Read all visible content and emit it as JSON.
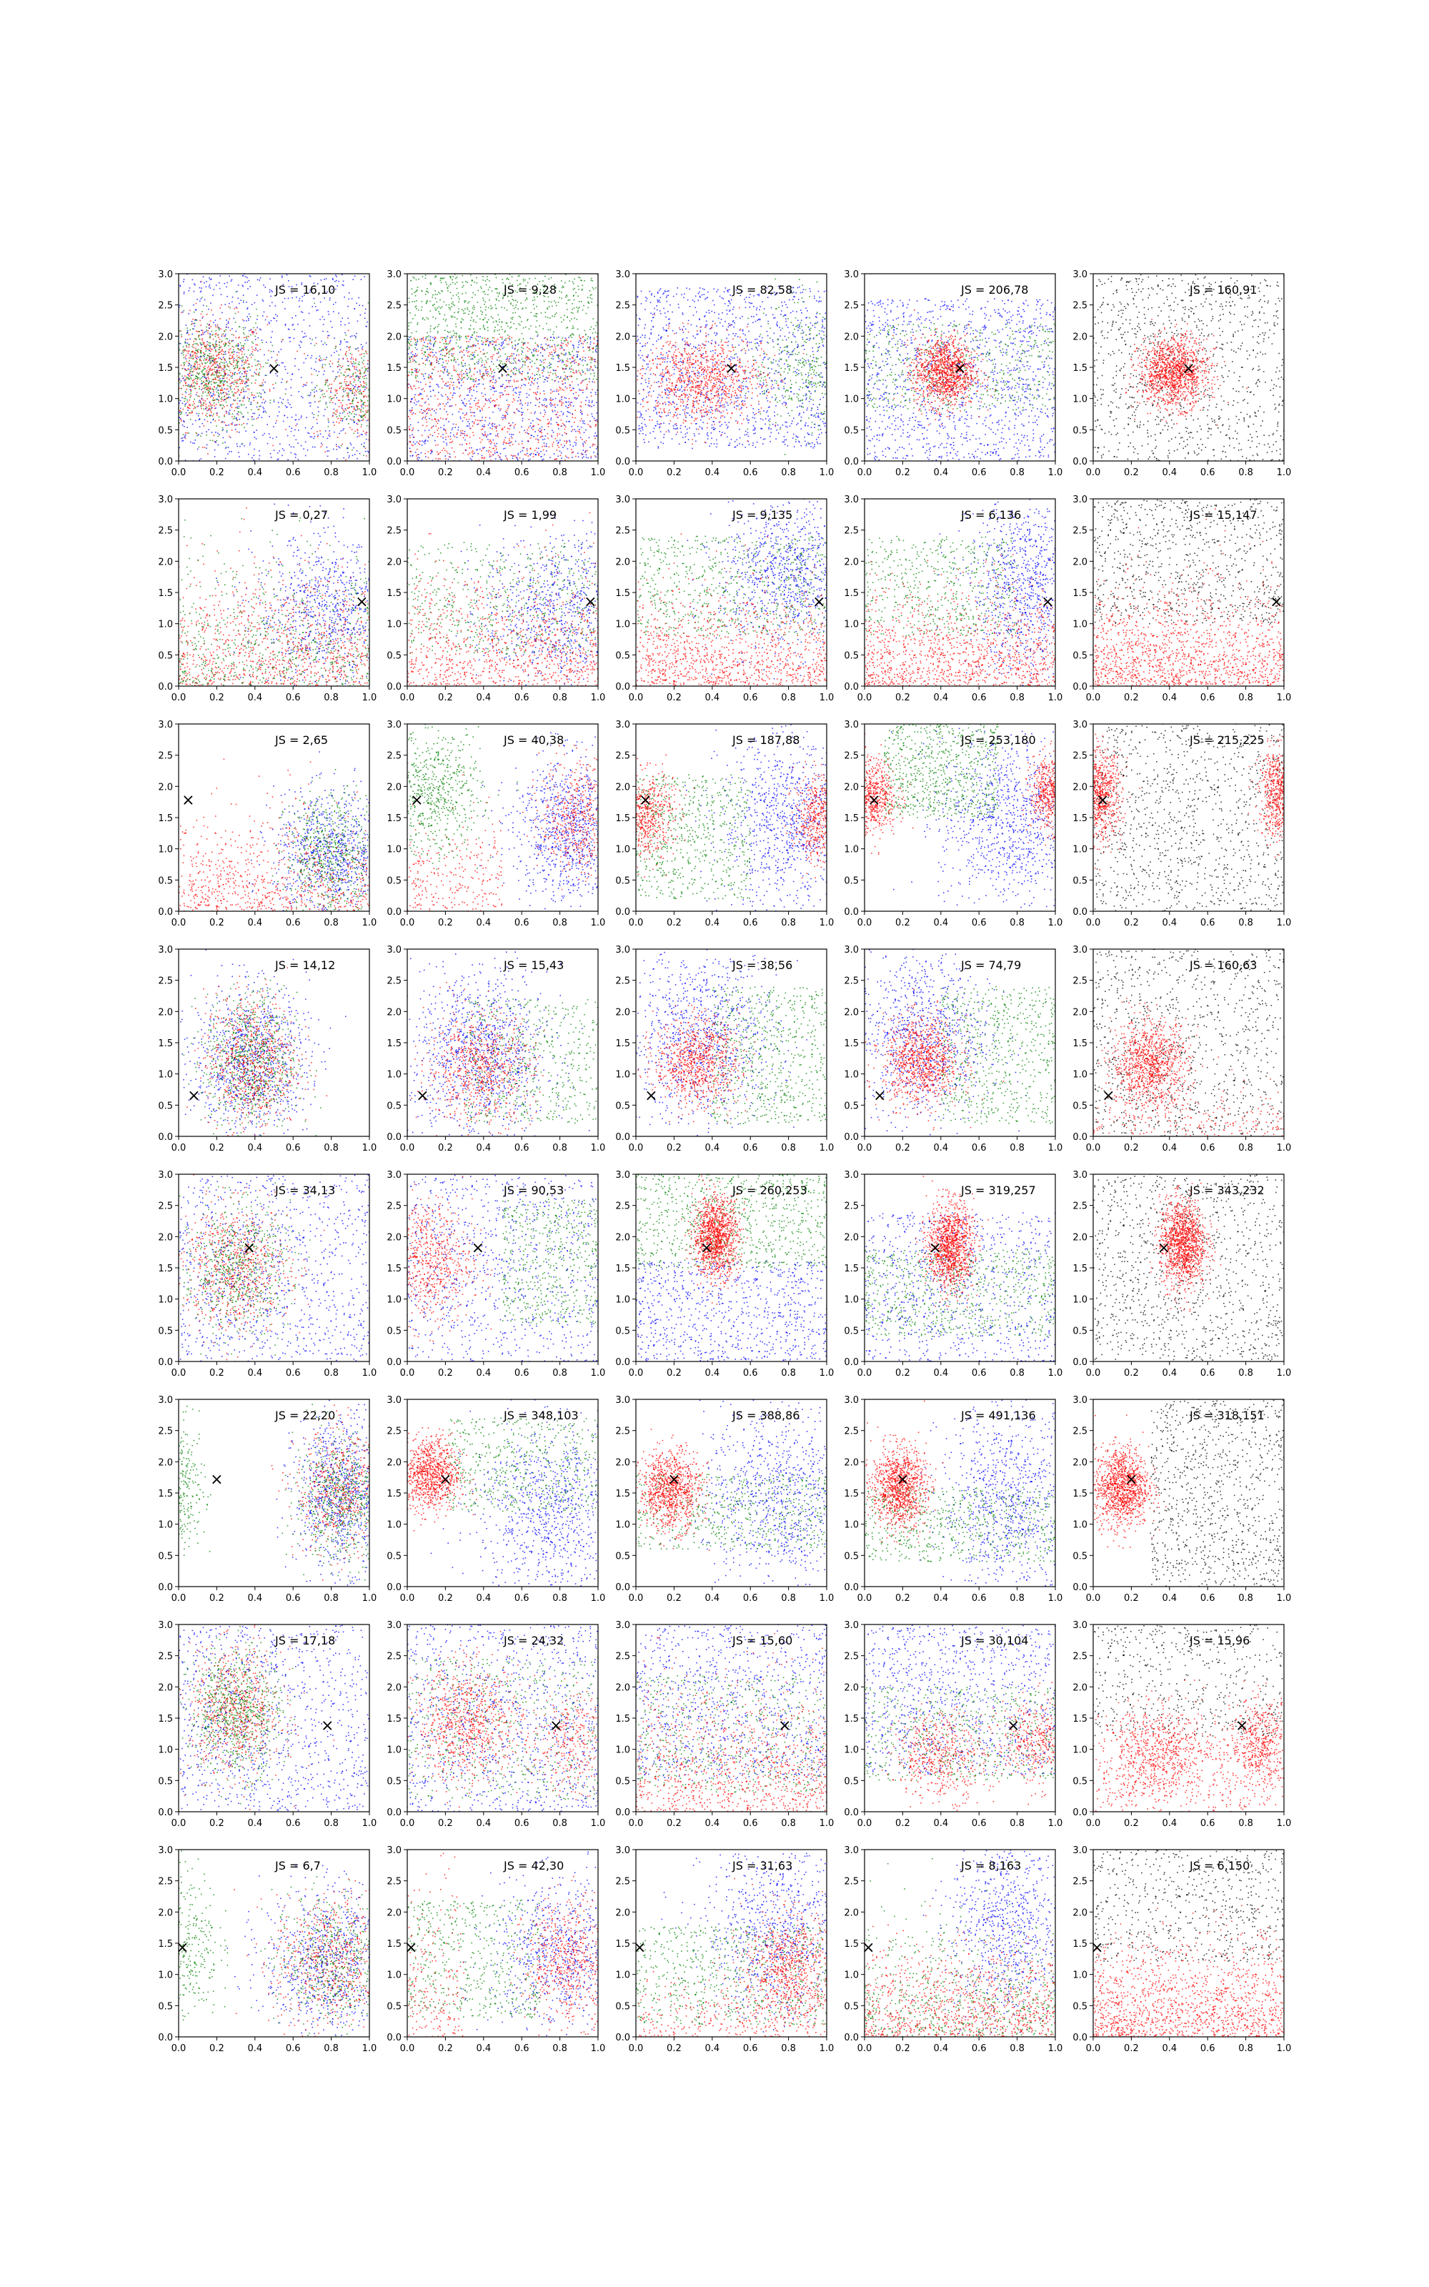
{
  "figure": {
    "rows": 8,
    "cols": 5,
    "xlim": [
      0,
      1
    ],
    "ylim": [
      0,
      3
    ],
    "xticks": [
      "0.0",
      "0.2",
      "0.4",
      "0.6",
      "0.8",
      "1.0"
    ],
    "yticks": [
      "0.0",
      "0.5",
      "1.0",
      "1.5",
      "2.0",
      "2.5",
      "3.0"
    ],
    "marker_symbol": "×",
    "colors": {
      "red": "#ff0000",
      "green": "#008000",
      "blue": "#0000ff",
      "black": "#000000",
      "frame": "#000000"
    }
  },
  "chart_data": [
    {
      "type": "scatter",
      "row": 0,
      "col": 0,
      "annotation": "JS = 16,10",
      "marker": [
        0.5,
        1.48
      ],
      "ylim": [
        0,
        3
      ]
    },
    {
      "type": "scatter",
      "row": 0,
      "col": 1,
      "annotation": "JS = 9,28",
      "marker": [
        0.5,
        1.48
      ],
      "ylim": [
        0,
        3
      ]
    },
    {
      "type": "scatter",
      "row": 0,
      "col": 2,
      "annotation": "JS = 82,58",
      "marker": [
        0.5,
        1.48
      ],
      "ylim": [
        0,
        3
      ]
    },
    {
      "type": "scatter",
      "row": 0,
      "col": 3,
      "annotation": "JS = 206,78",
      "marker": [
        0.5,
        1.48
      ],
      "ylim": [
        0,
        3
      ]
    },
    {
      "type": "scatter",
      "row": 0,
      "col": 4,
      "annotation": "JS = 160,91",
      "marker": [
        0.5,
        1.48
      ],
      "ylim": [
        0,
        3
      ]
    },
    {
      "type": "scatter",
      "row": 1,
      "col": 0,
      "annotation": "JS = 0,27",
      "marker": [
        0.96,
        1.35
      ],
      "ylim": [
        0,
        3
      ]
    },
    {
      "type": "scatter",
      "row": 1,
      "col": 1,
      "annotation": "JS = 1,99",
      "marker": [
        0.96,
        1.35
      ],
      "ylim": [
        0,
        3
      ]
    },
    {
      "type": "scatter",
      "row": 1,
      "col": 2,
      "annotation": "JS = 9,135",
      "marker": [
        0.96,
        1.35
      ],
      "ylim": [
        0,
        3
      ]
    },
    {
      "type": "scatter",
      "row": 1,
      "col": 3,
      "annotation": "JS = 6,136",
      "marker": [
        0.96,
        1.35
      ],
      "ylim": [
        0,
        3
      ]
    },
    {
      "type": "scatter",
      "row": 1,
      "col": 4,
      "annotation": "JS = 15,147",
      "marker": [
        0.96,
        1.35
      ],
      "ylim": [
        0,
        3
      ]
    },
    {
      "type": "scatter",
      "row": 2,
      "col": 0,
      "annotation": "JS = 2,65",
      "marker": [
        0.05,
        1.78
      ],
      "ylim": [
        0,
        3
      ]
    },
    {
      "type": "scatter",
      "row": 2,
      "col": 1,
      "annotation": "JS = 40,38",
      "marker": [
        0.05,
        1.78
      ],
      "ylim": [
        0,
        3
      ]
    },
    {
      "type": "scatter",
      "row": 2,
      "col": 2,
      "annotation": "JS = 187,88",
      "marker": [
        0.05,
        1.78
      ],
      "ylim": [
        0,
        3
      ]
    },
    {
      "type": "scatter",
      "row": 2,
      "col": 3,
      "annotation": "JS = 253,180",
      "marker": [
        0.05,
        1.78
      ],
      "ylim": [
        0,
        3
      ]
    },
    {
      "type": "scatter",
      "row": 2,
      "col": 4,
      "annotation": "JS = 215,225",
      "marker": [
        0.05,
        1.78
      ],
      "ylim": [
        0,
        3
      ]
    },
    {
      "type": "scatter",
      "row": 3,
      "col": 0,
      "annotation": "JS = 14,12",
      "marker": [
        0.08,
        0.65
      ],
      "ylim": [
        0,
        3
      ]
    },
    {
      "type": "scatter",
      "row": 3,
      "col": 1,
      "annotation": "JS = 15,43",
      "marker": [
        0.08,
        0.65
      ],
      "ylim": [
        0,
        3
      ]
    },
    {
      "type": "scatter",
      "row": 3,
      "col": 2,
      "annotation": "JS = 38,56",
      "marker": [
        0.08,
        0.65
      ],
      "ylim": [
        0,
        3
      ]
    },
    {
      "type": "scatter",
      "row": 3,
      "col": 3,
      "annotation": "JS = 74,79",
      "marker": [
        0.08,
        0.65
      ],
      "ylim": [
        0,
        3
      ]
    },
    {
      "type": "scatter",
      "row": 3,
      "col": 4,
      "annotation": "JS = 160,63",
      "marker": [
        0.08,
        0.65
      ],
      "ylim": [
        0,
        3
      ]
    },
    {
      "type": "scatter",
      "row": 4,
      "col": 0,
      "annotation": "JS = 34,13",
      "marker": [
        0.37,
        1.82
      ],
      "ylim": [
        0,
        3
      ]
    },
    {
      "type": "scatter",
      "row": 4,
      "col": 1,
      "annotation": "JS = 90,53",
      "marker": [
        0.37,
        1.82
      ],
      "ylim": [
        0,
        3
      ]
    },
    {
      "type": "scatter",
      "row": 4,
      "col": 2,
      "annotation": "JS = 260,253",
      "marker": [
        0.37,
        1.82
      ],
      "ylim": [
        0,
        3
      ]
    },
    {
      "type": "scatter",
      "row": 4,
      "col": 3,
      "annotation": "JS = 319,257",
      "marker": [
        0.37,
        1.82
      ],
      "ylim": [
        0,
        3
      ]
    },
    {
      "type": "scatter",
      "row": 4,
      "col": 4,
      "annotation": "JS = 343,232",
      "marker": [
        0.37,
        1.82
      ],
      "ylim": [
        0,
        3
      ]
    },
    {
      "type": "scatter",
      "row": 5,
      "col": 0,
      "annotation": "JS = 22,20",
      "marker": [
        0.2,
        1.72
      ],
      "ylim": [
        0,
        3
      ]
    },
    {
      "type": "scatter",
      "row": 5,
      "col": 1,
      "annotation": "JS = 348,103",
      "marker": [
        0.2,
        1.72
      ],
      "ylim": [
        0,
        3
      ]
    },
    {
      "type": "scatter",
      "row": 5,
      "col": 2,
      "annotation": "JS = 388,86",
      "marker": [
        0.2,
        1.72
      ],
      "ylim": [
        0,
        3
      ]
    },
    {
      "type": "scatter",
      "row": 5,
      "col": 3,
      "annotation": "JS = 491,136",
      "marker": [
        0.2,
        1.72
      ],
      "ylim": [
        0,
        3
      ]
    },
    {
      "type": "scatter",
      "row": 5,
      "col": 4,
      "annotation": "JS = 318,151",
      "marker": [
        0.2,
        1.72
      ],
      "ylim": [
        0,
        3
      ]
    },
    {
      "type": "scatter",
      "row": 6,
      "col": 0,
      "annotation": "JS = 17,18",
      "marker": [
        0.78,
        1.38
      ],
      "ylim": [
        0,
        3
      ]
    },
    {
      "type": "scatter",
      "row": 6,
      "col": 1,
      "annotation": "JS = 24,32",
      "marker": [
        0.78,
        1.38
      ],
      "ylim": [
        0,
        3
      ]
    },
    {
      "type": "scatter",
      "row": 6,
      "col": 2,
      "annotation": "JS = 15,60",
      "marker": [
        0.78,
        1.38
      ],
      "ylim": [
        0,
        3
      ]
    },
    {
      "type": "scatter",
      "row": 6,
      "col": 3,
      "annotation": "JS = 30,104",
      "marker": [
        0.78,
        1.38
      ],
      "ylim": [
        0,
        3
      ]
    },
    {
      "type": "scatter",
      "row": 6,
      "col": 4,
      "annotation": "JS = 15,96",
      "marker": [
        0.78,
        1.38
      ],
      "ylim": [
        0,
        3
      ]
    },
    {
      "type": "scatter",
      "row": 7,
      "col": 0,
      "annotation": "JS = 6,7",
      "marker": [
        0.02,
        1.43
      ],
      "ylim": [
        0,
        3
      ]
    },
    {
      "type": "scatter",
      "row": 7,
      "col": 1,
      "annotation": "JS = 42,30",
      "marker": [
        0.02,
        1.43
      ],
      "ylim": [
        0,
        3
      ]
    },
    {
      "type": "scatter",
      "row": 7,
      "col": 2,
      "annotation": "JS = 31,63",
      "marker": [
        0.02,
        1.43
      ],
      "ylim": [
        0,
        3
      ]
    },
    {
      "type": "scatter",
      "row": 7,
      "col": 3,
      "annotation": "JS = 8,163",
      "marker": [
        0.02,
        1.43
      ],
      "ylim": [
        0,
        3
      ]
    },
    {
      "type": "scatter",
      "row": 7,
      "col": 4,
      "annotation": "JS = 6,150",
      "marker": [
        0.02,
        1.43
      ],
      "ylim": [
        0,
        3
      ]
    }
  ]
}
